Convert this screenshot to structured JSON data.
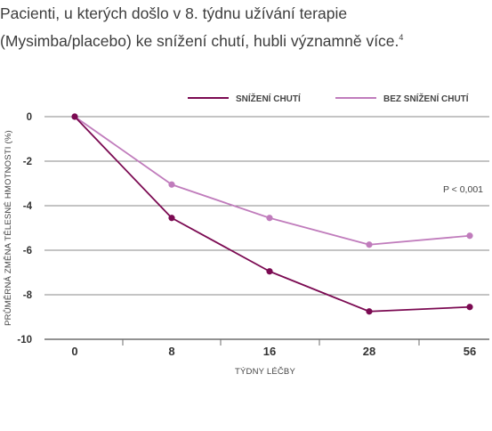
{
  "heading": {
    "line1": "Pacienti, u kterých došlo v 8. týdnu užívání terapie",
    "line2": "(Mysimba/placebo) ke snížení chutí, hubli významně více.",
    "footnote_ref": "4"
  },
  "chart_data": {
    "type": "line",
    "categories": [
      "0",
      "8",
      "16",
      "28",
      "56"
    ],
    "series": [
      {
        "name": "SNÍŽENÍ CHUTÍ",
        "color": "#7b0a52",
        "values": [
          0,
          -4.55,
          -6.95,
          -8.75,
          -8.55
        ]
      },
      {
        "name": "BEZ SNÍŽENÍ CHUTÍ",
        "color": "#c07cbc",
        "values": [
          0,
          -3.05,
          -4.55,
          -5.75,
          -5.35
        ]
      }
    ],
    "xlabel": "TÝDNY LÉČBY",
    "ylabel": "PRŮMĚRNÁ ZMĚNA TĚLESNÉ HMOTNOSTI (%)",
    "yticks": [
      0,
      -2,
      -4,
      -6,
      -8,
      -10
    ],
    "ylim": [
      -10,
      0
    ],
    "grid": true,
    "legend_position": "top-right",
    "annotation": "P < 0,001"
  }
}
